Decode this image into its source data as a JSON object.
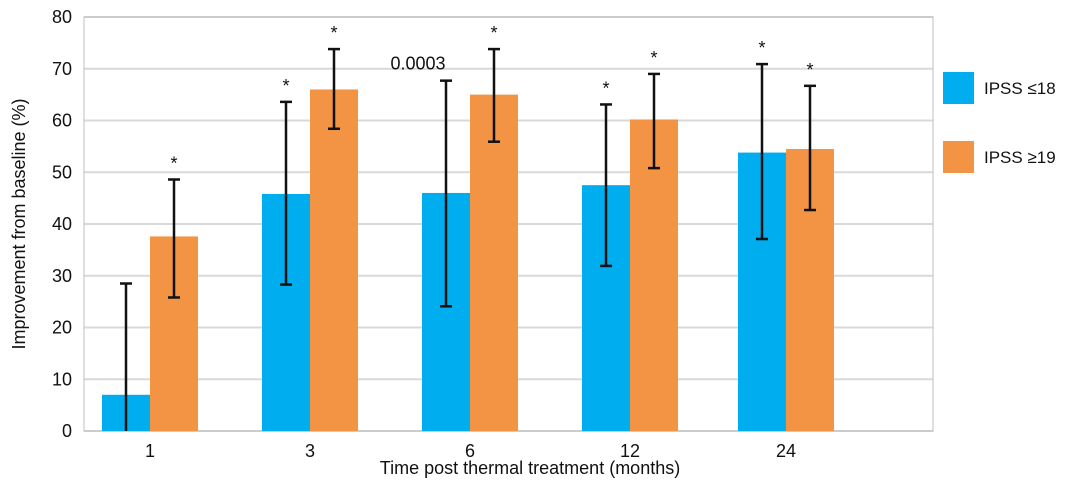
{
  "chart_data": {
    "type": "bar",
    "xlabel": "Time post thermal treatment (months)",
    "ylabel": "Improvement from baseline (%)",
    "ylim": [
      0,
      80
    ],
    "yticks": [
      0,
      10,
      20,
      30,
      40,
      50,
      60,
      70,
      80
    ],
    "grid": true,
    "legend_position": "right",
    "categories": [
      "1",
      "3",
      "6",
      "12",
      "24"
    ],
    "series": [
      {
        "name": "IPSS ≤18",
        "color": "#00ADEF",
        "values": [
          7,
          45.8,
          46,
          47.5,
          53.8
        ],
        "error_low": [
          0,
          28.3,
          24.1,
          31.9,
          37.1
        ],
        "error_high": [
          28.5,
          63.6,
          67.7,
          63.1,
          70.9
        ],
        "annotations": [
          "",
          "*",
          "0.0003",
          "*",
          "*"
        ]
      },
      {
        "name": "IPSS ≥19",
        "color": "#F39444",
        "values": [
          37.6,
          66,
          65,
          60.2,
          54.5
        ],
        "error_low": [
          25.8,
          58.4,
          55.9,
          50.8,
          42.7
        ],
        "error_high": [
          48.6,
          73.8,
          73.8,
          69,
          66.7
        ],
        "annotations": [
          "*",
          "*",
          "*",
          "*",
          "*"
        ]
      }
    ]
  }
}
